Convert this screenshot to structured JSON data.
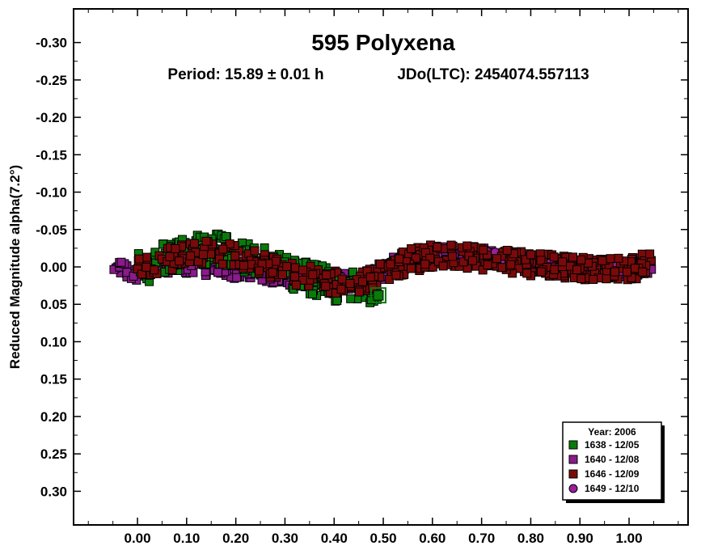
{
  "chart_data": {
    "type": "scatter",
    "title": "595 Polyxena",
    "period_text": "Period: 15.89 ± 0.01 h",
    "epoch_text": "JDo(LTC): 2454074.557113",
    "xlabel": "",
    "ylabel": "Reduced Magnitude alpha(7.2°)",
    "xlim": [
      -0.13,
      1.12
    ],
    "ylim": [
      -0.345,
      0.345
    ],
    "y_inverted": true,
    "x_ticks": [
      "0.00",
      "0.10",
      "0.20",
      "0.30",
      "0.40",
      "0.50",
      "0.60",
      "0.70",
      "0.80",
      "0.90",
      "1.00"
    ],
    "x_tick_values": [
      0.0,
      0.1,
      0.2,
      0.3,
      0.4,
      0.5,
      0.6,
      0.7,
      0.8,
      0.9,
      1.0
    ],
    "y_ticks": [
      "-0.30",
      "-0.25",
      "-0.20",
      "-0.15",
      "-0.10",
      "-0.05",
      "0.00",
      "0.05",
      "0.10",
      "0.15",
      "0.20",
      "0.25",
      "0.30"
    ],
    "y_tick_values": [
      -0.3,
      -0.25,
      -0.2,
      -0.15,
      -0.1,
      -0.05,
      0.0,
      0.05,
      0.1,
      0.15,
      0.2,
      0.25,
      0.3
    ],
    "legend": {
      "title": "Year: 2006",
      "position": "bottom-right",
      "entries": [
        {
          "label": "1638 - 12/05",
          "color": "#0a7a0a",
          "marker": "square"
        },
        {
          "label": "1640 - 12/08",
          "color": "#8b1a8b",
          "marker": "square"
        },
        {
          "label": "1646 - 12/09",
          "color": "#7a0a0a",
          "marker": "square"
        },
        {
          "label": "1649 - 12/10",
          "color": "#9b1f9b",
          "marker": "circle"
        }
      ]
    },
    "series": [
      {
        "name": "1638 - 12/05",
        "color": "#0a7a0a",
        "marker": "square",
        "x_range": [
          0.0,
          0.49
        ],
        "spread": 0.022,
        "curve": [
          [
            0.0,
            0.004
          ],
          [
            0.05,
            -0.008
          ],
          [
            0.1,
            -0.022
          ],
          [
            0.15,
            -0.024
          ],
          [
            0.2,
            -0.018
          ],
          [
            0.25,
            -0.006
          ],
          [
            0.3,
            0.008
          ],
          [
            0.35,
            0.016
          ],
          [
            0.4,
            0.024
          ],
          [
            0.45,
            0.028
          ],
          [
            0.49,
            0.03
          ]
        ]
      },
      {
        "name": "1640 - 12/08",
        "color": "#8b1a8b",
        "marker": "square",
        "x_range": [
          -0.05,
          1.05
        ],
        "spread": 0.012,
        "curve": [
          [
            -0.05,
            0.004
          ],
          [
            0.0,
            0.006
          ],
          [
            0.05,
            -0.004
          ],
          [
            0.45,
            0.022
          ],
          [
            0.5,
            0.004
          ],
          [
            0.55,
            -0.01
          ],
          [
            0.6,
            -0.016
          ],
          [
            0.65,
            -0.018
          ],
          [
            0.7,
            -0.014
          ],
          [
            0.75,
            -0.01
          ],
          [
            0.8,
            -0.006
          ],
          [
            0.85,
            -0.004
          ],
          [
            0.9,
            0.0
          ],
          [
            0.95,
            0.004
          ],
          [
            1.0,
            0.002
          ],
          [
            1.05,
            -0.004
          ]
        ]
      },
      {
        "name": "1646 - 12/09",
        "color": "#7a0a0a",
        "marker": "square",
        "x_range": [
          0.0,
          1.05
        ],
        "spread": 0.016,
        "curve": [
          [
            0.0,
            0.004
          ],
          [
            0.05,
            -0.006
          ],
          [
            0.1,
            -0.018
          ],
          [
            0.15,
            -0.022
          ],
          [
            0.2,
            -0.016
          ],
          [
            0.25,
            -0.006
          ],
          [
            0.3,
            0.006
          ],
          [
            0.35,
            0.014
          ],
          [
            0.4,
            0.02
          ],
          [
            0.45,
            0.022
          ],
          [
            0.5,
            0.006
          ],
          [
            0.55,
            -0.008
          ],
          [
            0.6,
            -0.014
          ],
          [
            0.7,
            -0.012
          ],
          [
            0.8,
            -0.004
          ],
          [
            0.9,
            0.002
          ],
          [
            1.0,
            0.002
          ],
          [
            1.05,
            -0.004
          ]
        ]
      },
      {
        "name": "1649 - 12/10",
        "color": "#9b1f9b",
        "marker": "circle",
        "x_range": [
          0.47,
          1.0
        ],
        "spread": 0.01,
        "curve": [
          [
            0.47,
            0.01
          ],
          [
            0.5,
            0.004
          ],
          [
            0.55,
            -0.008
          ],
          [
            0.6,
            -0.014
          ],
          [
            0.65,
            -0.016
          ],
          [
            0.7,
            -0.012
          ],
          [
            0.75,
            -0.008
          ],
          [
            0.8,
            -0.004
          ],
          [
            0.85,
            -0.002
          ],
          [
            0.9,
            0.002
          ],
          [
            0.95,
            0.006
          ],
          [
            1.0,
            0.004
          ]
        ]
      }
    ]
  }
}
